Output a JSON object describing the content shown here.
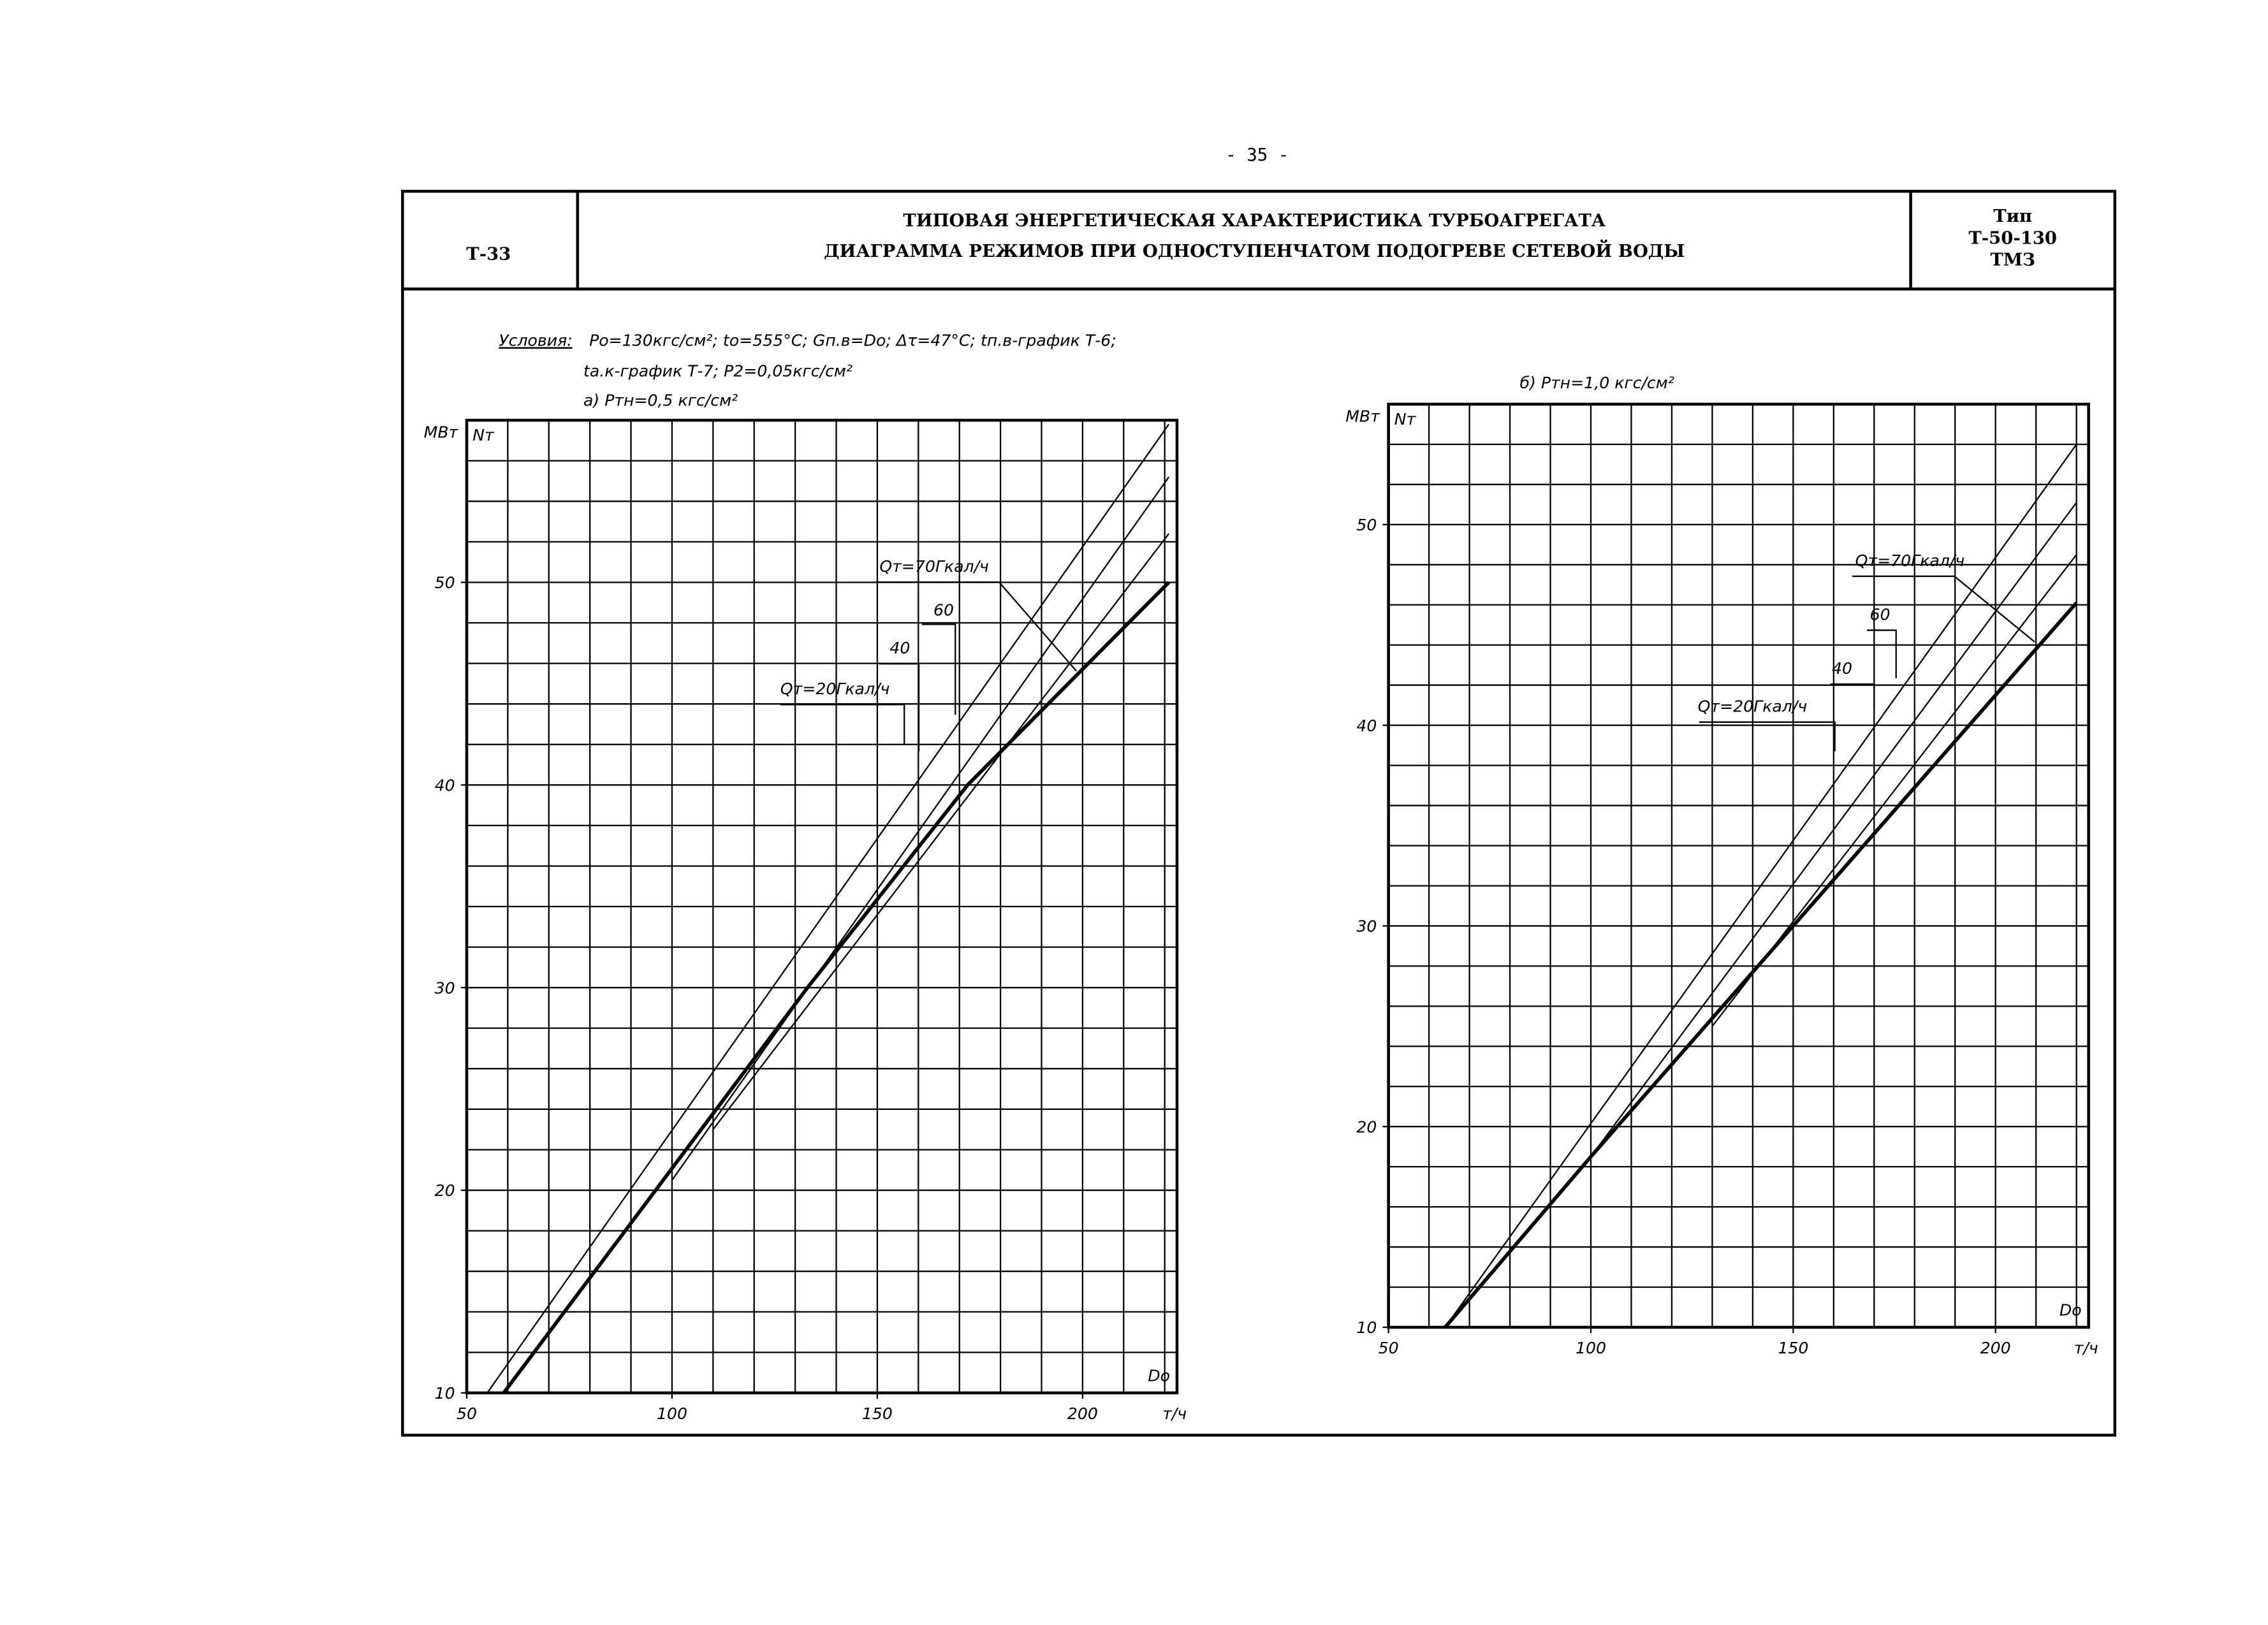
{
  "page_number": "- 35 -",
  "header": {
    "code": "Т-33",
    "title": [
      "ТИПОВАЯ ЭНЕРГЕТИЧЕСКАЯ ХАРАКТЕРИСТИКА ТУРБОАГРЕГАТА",
      "ДИАГРАММА РЕЖИМОВ ПРИ ОДНОСТУПЕНЧАТОМ ПОДОГРЕВЕ СЕТЕВОЙ ВОДЫ"
    ],
    "type": [
      "Тип",
      "Т-50-130",
      "ТМЗ"
    ]
  },
  "conditions": {
    "label": "Условия:",
    "lines": [
      "Pо=130кгс/см²; tо=555°С; Gп.в=Dо; Δτ=47°С; tп.в-график Т-6;",
      "tа.к-график Т-7; P2=0,05кгс/см²"
    ]
  },
  "chart_data": [
    {
      "type": "line",
      "subtitle": "а) Pтн=0,5 кгс/см²",
      "y_unit": "МВт",
      "y_label": "Nт",
      "x_label": "Dо",
      "x_unit": "т/ч",
      "xlim": [
        50,
        223
      ],
      "ylim": [
        10,
        58
      ],
      "xticks": [
        50,
        100,
        150,
        200
      ],
      "yticks": [
        10,
        20,
        30,
        40,
        50
      ],
      "grid": true,
      "minor_grid": [
        10,
        2
      ],
      "series": [
        {
          "name": "Qт=70Гкал/ч",
          "color": "#000",
          "width": 1,
          "x": [
            55,
            221
          ],
          "values": [
            10,
            57.8
          ]
        },
        {
          "name": "60",
          "color": "#000",
          "width": 1,
          "x": [
            100,
            221
          ],
          "values": [
            20.5,
            55.2
          ]
        },
        {
          "name": "40",
          "color": "#000",
          "width": 1,
          "x": [
            110,
            221
          ],
          "values": [
            23,
            52.4
          ]
        },
        {
          "name": "Qт=20Гкал/ч",
          "color": "#000",
          "width": 2.5,
          "x": [
            59,
            96,
            133,
            172,
            221
          ],
          "values": [
            10,
            20,
            30,
            40,
            50
          ]
        }
      ]
    },
    {
      "type": "line",
      "subtitle": "б) Pтн=1,0 кгс/см²",
      "y_unit": "МВт",
      "y_label": "Nт",
      "x_label": "Dо",
      "x_unit": "т/ч",
      "xlim": [
        50,
        223
      ],
      "ylim": [
        10,
        56
      ],
      "xticks": [
        50,
        100,
        150,
        200
      ],
      "yticks": [
        10,
        20,
        30,
        40,
        50
      ],
      "grid": true,
      "minor_grid": [
        10,
        2
      ],
      "series": [
        {
          "name": "Qт=70Гкал/ч",
          "color": "#000",
          "width": 1,
          "x": [
            64,
            220
          ],
          "values": [
            10,
            54
          ]
        },
        {
          "name": "60",
          "color": "#000",
          "width": 1,
          "x": [
            100,
            220
          ],
          "values": [
            18.5,
            51.1
          ]
        },
        {
          "name": "40",
          "color": "#000",
          "width": 1,
          "x": [
            130,
            220
          ],
          "values": [
            25,
            48.5
          ]
        },
        {
          "name": "Qт=20Гкал/ч",
          "color": "#000",
          "width": 2.5,
          "x": [
            64,
            100,
            150,
            220
          ],
          "values": [
            10,
            18.5,
            30,
            46.1
          ]
        }
      ]
    }
  ]
}
